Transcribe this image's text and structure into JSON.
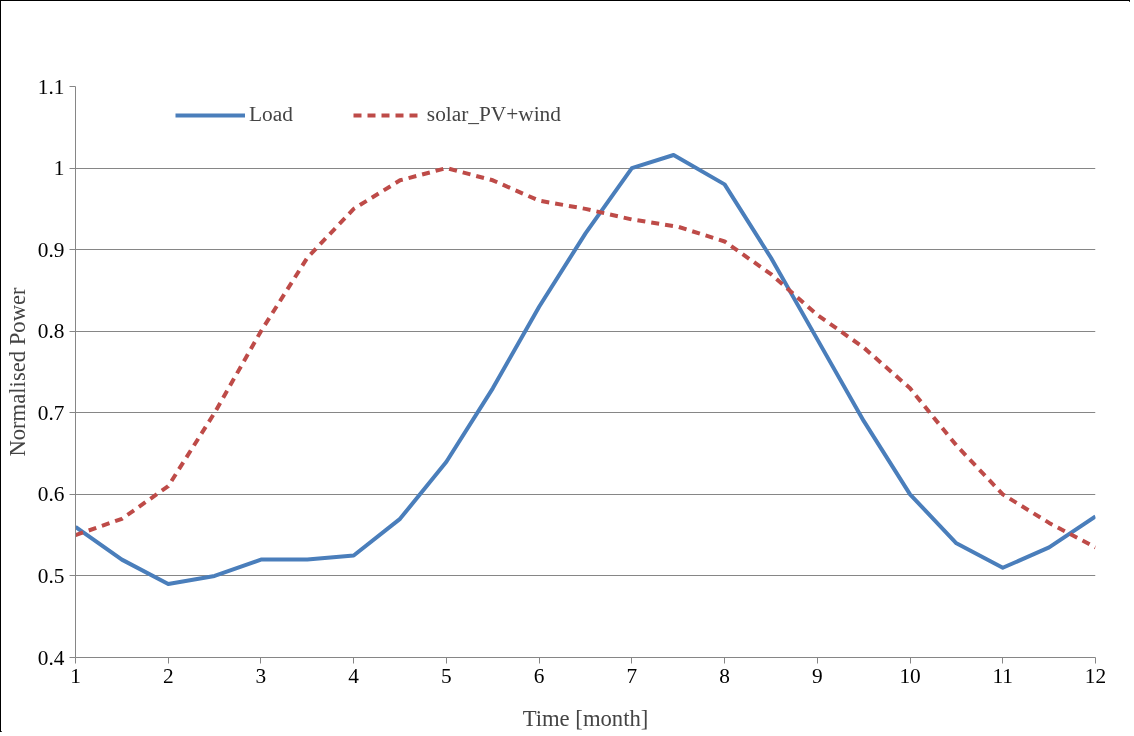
{
  "chart_data": {
    "type": "line",
    "xlabel": "Time [month]",
    "ylabel": "Normalised Power",
    "xlim": [
      1,
      12
    ],
    "xticks": [
      1,
      2,
      3,
      4,
      5,
      6,
      7,
      8,
      9,
      10,
      11,
      12
    ],
    "ylim": [
      0.4,
      1.1
    ],
    "yticks": [
      0.4,
      0.5,
      0.6,
      0.7,
      0.8,
      0.9,
      1,
      1.1
    ],
    "grid": "y",
    "legend": "top",
    "marker": "none",
    "series": [
      {
        "name": "Load",
        "color": "#4a7ebb",
        "line_style": "solid",
        "x": [
          1,
          1.5,
          2,
          2.5,
          3,
          3.5,
          4,
          4.5,
          5,
          5.5,
          6,
          6.5,
          7,
          7.45,
          8,
          8.5,
          9,
          9.5,
          10,
          10.5,
          11,
          11.5,
          12
        ],
        "values": [
          0.56,
          0.52,
          0.49,
          0.5,
          0.52,
          0.52,
          0.525,
          0.57,
          0.64,
          0.73,
          0.83,
          0.92,
          1.0,
          1.016,
          0.98,
          0.89,
          0.79,
          0.69,
          0.6,
          0.54,
          0.51,
          0.535,
          0.573
        ]
      },
      {
        "name": "solar_PV+wind",
        "color": "#be4b48",
        "line_style": "dashed",
        "x": [
          1,
          1.5,
          2,
          2.5,
          3,
          3.5,
          4,
          4.5,
          5,
          5.5,
          6,
          6.5,
          7,
          7.5,
          8,
          8.5,
          9,
          9.5,
          10,
          10.5,
          11,
          11.5,
          12
        ],
        "values": [
          0.55,
          0.57,
          0.61,
          0.7,
          0.8,
          0.89,
          0.95,
          0.985,
          1.0,
          0.985,
          0.96,
          0.95,
          0.937,
          0.928,
          0.91,
          0.87,
          0.82,
          0.78,
          0.73,
          0.66,
          0.6,
          0.565,
          0.535
        ]
      }
    ]
  }
}
